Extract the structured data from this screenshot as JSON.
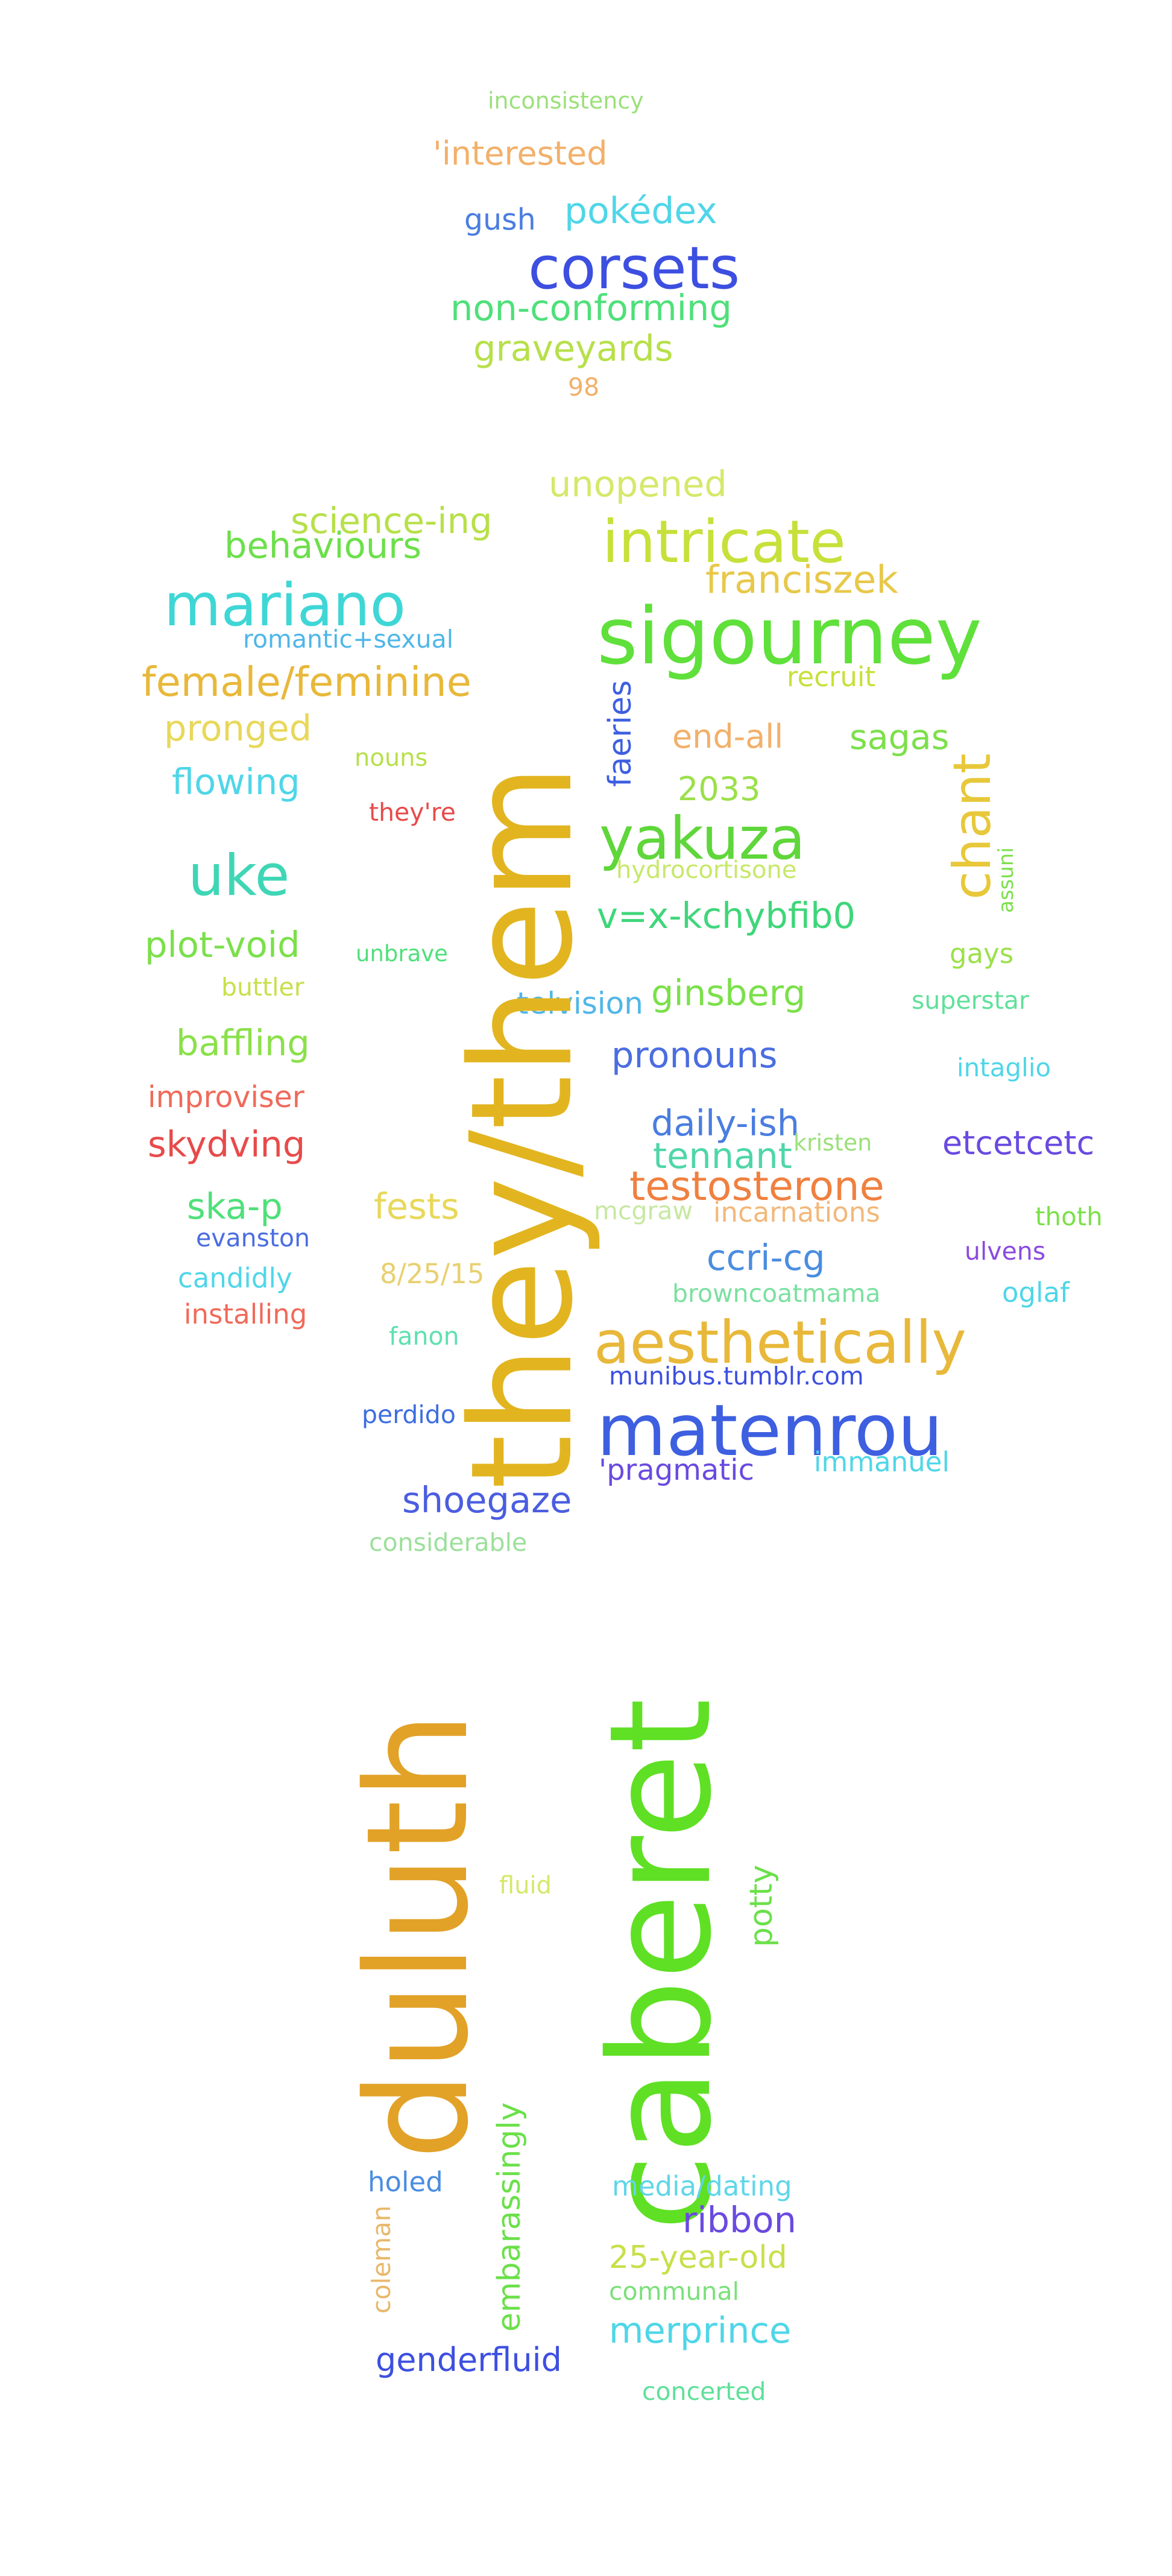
{
  "words": [
    {
      "text": "inconsistency",
      "color": "#9be07a"
    },
    {
      "text": "'interested",
      "color": "#f2b06a"
    },
    {
      "text": "gush",
      "color": "#4a7de0"
    },
    {
      "text": "pokédex",
      "color": "#4fd6e8"
    },
    {
      "text": "corsets",
      "color": "#3d4fe0"
    },
    {
      "text": "non-conforming",
      "color": "#4fe07a"
    },
    {
      "text": "graveyards",
      "color": "#b7e04a"
    },
    {
      "text": "98",
      "color": "#f2b06a"
    },
    {
      "text": "unopened",
      "color": "#d6e86a"
    },
    {
      "text": "science-ing",
      "color": "#b7e04a"
    },
    {
      "text": "behaviours",
      "color": "#6be04a"
    },
    {
      "text": "intricate",
      "color": "#c7e03a"
    },
    {
      "text": "franciszek",
      "color": "#e8c84a"
    },
    {
      "text": "mariano",
      "color": "#3fd6d6"
    },
    {
      "text": "romantic+sexual",
      "color": "#4fb6e8"
    },
    {
      "text": "sigourney",
      "color": "#5fe03a"
    },
    {
      "text": "recruit",
      "color": "#c7e03a"
    },
    {
      "text": "female/feminine",
      "color": "#e8b83a"
    },
    {
      "text": "pronged",
      "color": "#e8d85a"
    },
    {
      "text": "faeries",
      "color": "#3d5fe0"
    },
    {
      "text": "end-all",
      "color": "#f2b06a"
    },
    {
      "text": "sagas",
      "color": "#7be04a"
    },
    {
      "text": "flowing",
      "color": "#4fd6e8"
    },
    {
      "text": "nouns",
      "color": "#b7e04a"
    },
    {
      "text": "2033",
      "color": "#9be04a"
    },
    {
      "text": "they're",
      "color": "#e84a4a"
    },
    {
      "text": "yakuza",
      "color": "#5fd63a"
    },
    {
      "text": "chant",
      "color": "#e8c83a"
    },
    {
      "text": "uke",
      "color": "#3fd6b6"
    },
    {
      "text": "hydrocortisone",
      "color": "#c7e86a"
    },
    {
      "text": "assuni",
      "color": "#7be04a"
    },
    {
      "text": "v=x-kchybfib0",
      "color": "#3fd67a"
    },
    {
      "text": "plot-void",
      "color": "#7be04a"
    },
    {
      "text": "unbrave",
      "color": "#4fe07a"
    },
    {
      "text": "gays",
      "color": "#9be04a"
    },
    {
      "text": "buttler",
      "color": "#c7e04a"
    },
    {
      "text": "telvision",
      "color": "#4fb6e8"
    },
    {
      "text": "ginsberg",
      "color": "#7be04a"
    },
    {
      "text": "superstar",
      "color": "#5fe09a"
    },
    {
      "text": "baffling",
      "color": "#8be04a"
    },
    {
      "text": "pronouns",
      "color": "#4a6de0"
    },
    {
      "text": "intaglio",
      "color": "#4fd6e8"
    },
    {
      "text": "improviser",
      "color": "#f06a5a"
    },
    {
      "text": "daily-ish",
      "color": "#4a7de0"
    },
    {
      "text": "kristen",
      "color": "#9be07a"
    },
    {
      "text": "tennant",
      "color": "#4fd6a8"
    },
    {
      "text": "etcetcetc",
      "color": "#6a4ae0"
    },
    {
      "text": "skydving",
      "color": "#e84a4a"
    },
    {
      "text": "testosterone",
      "color": "#f08040"
    },
    {
      "text": "ska-p",
      "color": "#4fe07a"
    },
    {
      "text": "fests",
      "color": "#e8d85a"
    },
    {
      "text": "mcgraw",
      "color": "#c7e8a0"
    },
    {
      "text": "incarnations",
      "color": "#f2b87a"
    },
    {
      "text": "thoth",
      "color": "#7be04a"
    },
    {
      "text": "evanston",
      "color": "#4a6de0"
    },
    {
      "text": "ulvens",
      "color": "#8a4ae0"
    },
    {
      "text": "ccri-cg",
      "color": "#4a8de0"
    },
    {
      "text": "candidly",
      "color": "#4fd6e8"
    },
    {
      "text": "8/25/15",
      "color": "#e8d070"
    },
    {
      "text": "browncoatmama",
      "color": "#7be0a0"
    },
    {
      "text": "oglaf",
      "color": "#4fd6e8"
    },
    {
      "text": "installing",
      "color": "#f06a5a"
    },
    {
      "text": "fanon",
      "color": "#5fe0b0"
    },
    {
      "text": "aesthetically",
      "color": "#e8b83a"
    },
    {
      "text": "munibus.tumblr.com",
      "color": "#3d4fe0"
    },
    {
      "text": "perdido",
      "color": "#3d6de0"
    },
    {
      "text": "matenrou",
      "color": "#3d5fe0"
    },
    {
      "text": "'pragmatic",
      "color": "#6a4ae0"
    },
    {
      "text": "immanuel",
      "color": "#4fd6e8"
    },
    {
      "text": "shoegaze",
      "color": "#4a5de0"
    },
    {
      "text": "considerable",
      "color": "#9be09a"
    },
    {
      "text": "they/them",
      "color": "#e2b520"
    },
    {
      "text": "duluth",
      "color": "#e2a228"
    },
    {
      "text": "caberet",
      "color": "#5fe024"
    },
    {
      "text": "fluid",
      "color": "#d6e86a"
    },
    {
      "text": "potty",
      "color": "#6be04a"
    },
    {
      "text": "embarassingly",
      "color": "#6be04a"
    },
    {
      "text": "holed",
      "color": "#4a8de0"
    },
    {
      "text": "media/dating",
      "color": "#5fd6e8"
    },
    {
      "text": "coleman",
      "color": "#e8b86a"
    },
    {
      "text": "ribbon",
      "color": "#6a4ae0"
    },
    {
      "text": "25-year-old",
      "color": "#c7e04a"
    },
    {
      "text": "communal",
      "color": "#7be07a"
    },
    {
      "text": "merprince",
      "color": "#4fd6e8"
    },
    {
      "text": "genderfluid",
      "color": "#3d4fe0"
    },
    {
      "text": "concerted",
      "color": "#5fe09a"
    }
  ]
}
